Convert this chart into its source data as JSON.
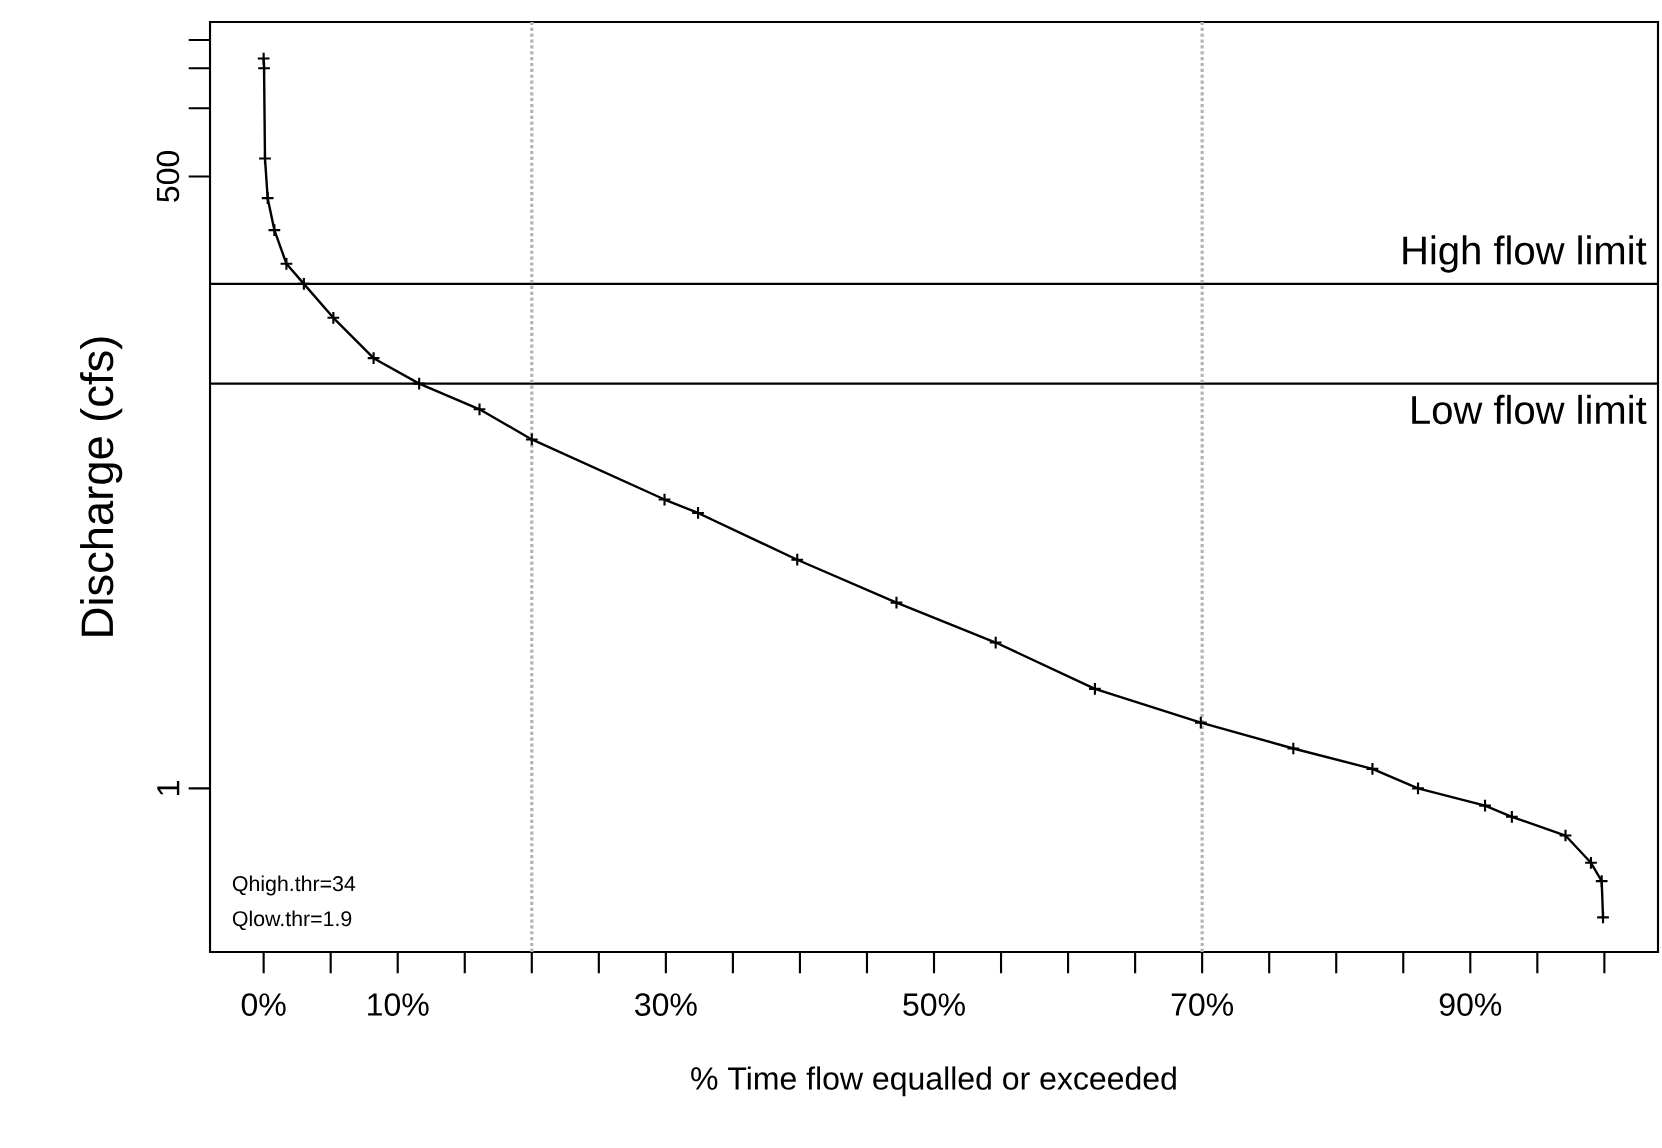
{
  "chart_data": {
    "type": "line",
    "xlabel": "% Time flow equalled or exceeded",
    "ylabel": "Discharge (cfs)",
    "log": "y",
    "grid": false,
    "marker": "cross",
    "line_style": "solid",
    "series": [
      {
        "color": "#000000",
        "x": [
          0,
          0.03,
          0.1,
          0.3,
          0.8,
          1.7,
          3.0,
          5.2,
          8.2,
          11.6,
          16.1,
          20.0,
          29.9,
          32.4,
          39.8,
          47.2,
          54.6,
          62.0,
          69.9,
          76.8,
          82.7,
          86.1,
          91.1,
          93.1,
          97.1,
          99.0,
          99.8,
          99.9
        ],
        "values": [
          1656,
          1500,
          600,
          401,
          290,
          206,
          168,
          119,
          79,
          61,
          47,
          34.6,
          18.8,
          16.4,
          10.2,
          6.6,
          4.4,
          2.75,
          1.95,
          1.5,
          1.22,
          1.0,
          0.84,
          0.75,
          0.62,
          0.47,
          0.39,
          0.27
        ]
      }
    ],
    "xlim": [
      -4,
      104
    ],
    "ylim": [
      0.19,
      2400
    ],
    "xticks": [
      {
        "value": 0,
        "label": "0%"
      },
      {
        "value": 5,
        "label": null
      },
      {
        "value": 10,
        "label": "10%"
      },
      {
        "value": 15,
        "label": null
      },
      {
        "value": 20,
        "label": null
      },
      {
        "value": 25,
        "label": null
      },
      {
        "value": 30,
        "label": "30%"
      },
      {
        "value": 35,
        "label": null
      },
      {
        "value": 40,
        "label": null
      },
      {
        "value": 45,
        "label": null
      },
      {
        "value": 50,
        "label": "50%"
      },
      {
        "value": 55,
        "label": null
      },
      {
        "value": 60,
        "label": null
      },
      {
        "value": 65,
        "label": null
      },
      {
        "value": 70,
        "label": "70%"
      },
      {
        "value": 75,
        "label": null
      },
      {
        "value": 80,
        "label": null
      },
      {
        "value": 85,
        "label": null
      },
      {
        "value": 90,
        "label": "90%"
      },
      {
        "value": 95,
        "label": null
      },
      {
        "value": 100,
        "label": null
      }
    ],
    "yticks": [
      1,
      500,
      {
        "value": 1000,
        "label": null
      },
      {
        "value": 1500,
        "label": null
      },
      {
        "value": 2000,
        "label": null
      }
    ],
    "ref_lines": [
      {
        "axis": "y",
        "value": 168,
        "label": "High flow limit",
        "color": "#000000",
        "line_style": "solid"
      },
      {
        "axis": "y",
        "value": 61,
        "label": "Low flow limit",
        "color": "#000000",
        "line_style": "solid"
      },
      {
        "axis": "x",
        "value": 20,
        "color": "#b4b4b4",
        "line_style": "dotted"
      },
      {
        "axis": "x",
        "value": 70,
        "color": "#b4b4b4",
        "line_style": "dotted"
      }
    ],
    "annotations": [
      "Qhigh.thr=34",
      "Qlow.thr=1.9"
    ]
  }
}
